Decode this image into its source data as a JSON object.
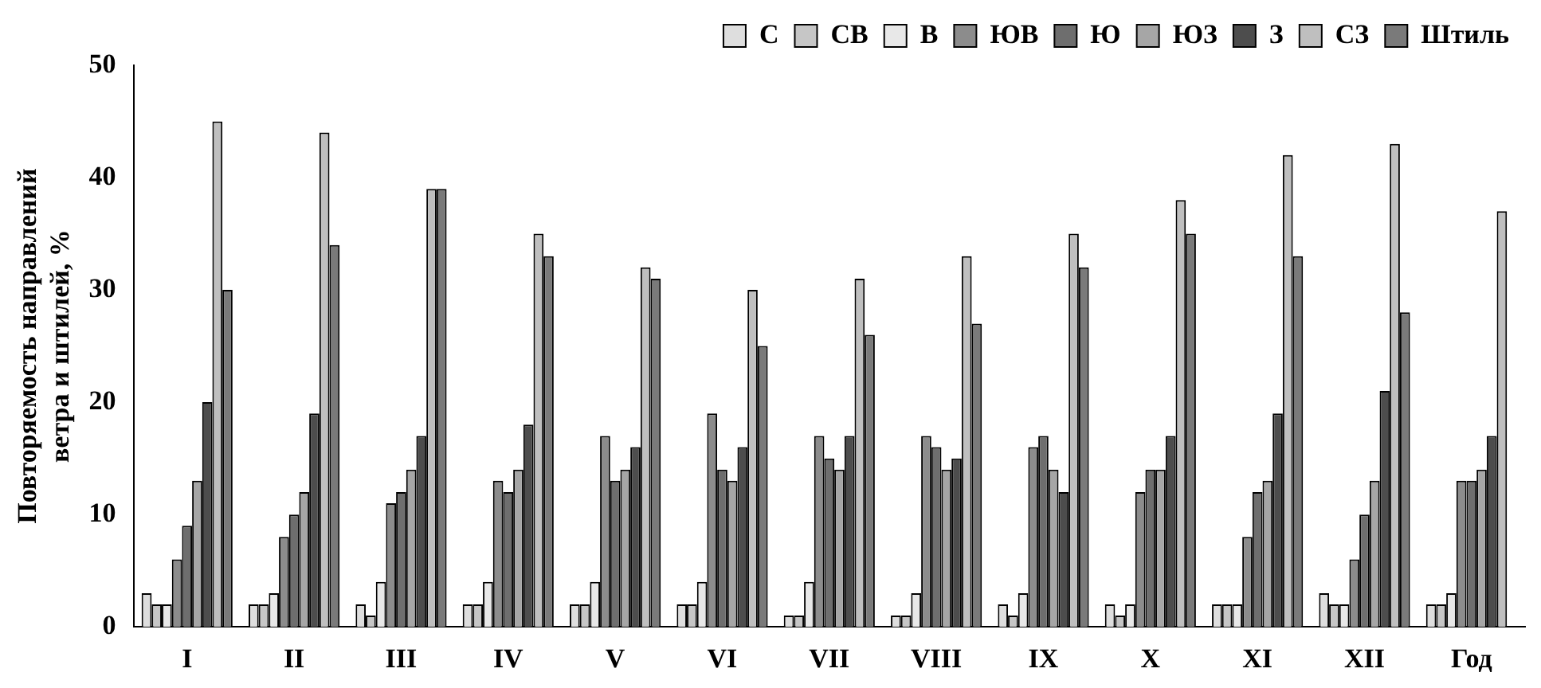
{
  "chart_data": {
    "type": "bar",
    "ylabel": "Повторяемость направлений\nветра и штилей, %",
    "categories": [
      "I",
      "II",
      "III",
      "IV",
      "V",
      "VI",
      "VII",
      "VIII",
      "IX",
      "X",
      "XI",
      "XII",
      "Год"
    ],
    "series": [
      {
        "name": "С",
        "color": "#dedede",
        "values": [
          3,
          2,
          2,
          2,
          2,
          2,
          1,
          1,
          2,
          2,
          2,
          3,
          2
        ]
      },
      {
        "name": "СВ",
        "color": "#c6c6c6",
        "values": [
          2,
          2,
          1,
          2,
          2,
          2,
          1,
          1,
          1,
          1,
          2,
          2,
          2
        ]
      },
      {
        "name": "В",
        "color": "#e8e8e8",
        "values": [
          2,
          3,
          4,
          4,
          4,
          4,
          4,
          3,
          3,
          2,
          2,
          2,
          3
        ]
      },
      {
        "name": "ЮВ",
        "color": "#8c8c8c",
        "values": [
          6,
          8,
          11,
          13,
          17,
          19,
          17,
          17,
          16,
          12,
          8,
          6,
          13
        ]
      },
      {
        "name": "Ю",
        "color": "#6e6e6e",
        "values": [
          9,
          10,
          12,
          12,
          13,
          14,
          15,
          16,
          17,
          14,
          12,
          10,
          13
        ]
      },
      {
        "name": "ЮЗ",
        "color": "#a6a6a6",
        "values": [
          13,
          12,
          14,
          14,
          14,
          13,
          14,
          14,
          14,
          14,
          13,
          13,
          14
        ]
      },
      {
        "name": "З",
        "color": "#4d4d4d",
        "values": [
          20,
          19,
          17,
          18,
          16,
          16,
          17,
          15,
          12,
          17,
          19,
          21,
          17
        ]
      },
      {
        "name": "СЗ",
        "color": "#bfbfbf",
        "values": [
          45,
          44,
          39,
          35,
          32,
          30,
          31,
          33,
          35,
          38,
          42,
          43,
          37
        ]
      },
      {
        "name": "Штиль",
        "color": "#7a7a7a",
        "values": [
          30,
          34,
          39,
          33,
          31,
          25,
          26,
          27,
          32,
          35,
          33,
          28,
          null
        ]
      }
    ],
    "ylim": [
      0,
      50
    ],
    "yticks": [
      0,
      10,
      20,
      30,
      40,
      50
    ],
    "grid": false,
    "legend": "top"
  }
}
